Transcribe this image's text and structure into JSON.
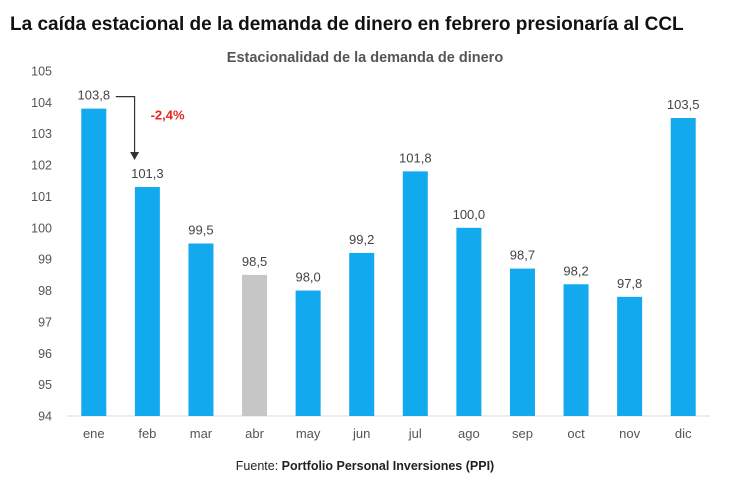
{
  "headline": "La caída estacional de la demanda de dinero en febrero presionaría al CCL",
  "source": {
    "label": "Fuente:",
    "name": "Portfolio Personal Inversiones (PPI)"
  },
  "annotation": {
    "text": "-2,4%",
    "color": "#e8251f"
  },
  "colors": {
    "bar": "#12a9ee",
    "bar_highlight": "#c6c6c6",
    "axis_text": "#555555",
    "gridline": "#d9d9d9"
  },
  "chart_data": {
    "type": "bar",
    "title": "Estacionalidad de la demanda de dinero",
    "categories": [
      "ene",
      "feb",
      "mar",
      "abr",
      "may",
      "jun",
      "jul",
      "ago",
      "sep",
      "oct",
      "nov",
      "dic"
    ],
    "values": [
      103.8,
      101.3,
      99.5,
      98.5,
      98.0,
      99.2,
      101.8,
      100.0,
      98.7,
      98.2,
      97.8,
      103.5
    ],
    "value_labels": [
      "103,8",
      "101,3",
      "99,5",
      "98,5",
      "98,0",
      "99,2",
      "101,8",
      "100,0",
      "98,7",
      "98,2",
      "97,8",
      "103,5"
    ],
    "highlight_category": "abr",
    "ylim": [
      94,
      105
    ],
    "yticks": [
      94,
      95,
      96,
      97,
      98,
      99,
      100,
      101,
      102,
      103,
      104,
      105
    ],
    "xlabel": "",
    "ylabel": "",
    "grid": false,
    "legend": "none"
  }
}
